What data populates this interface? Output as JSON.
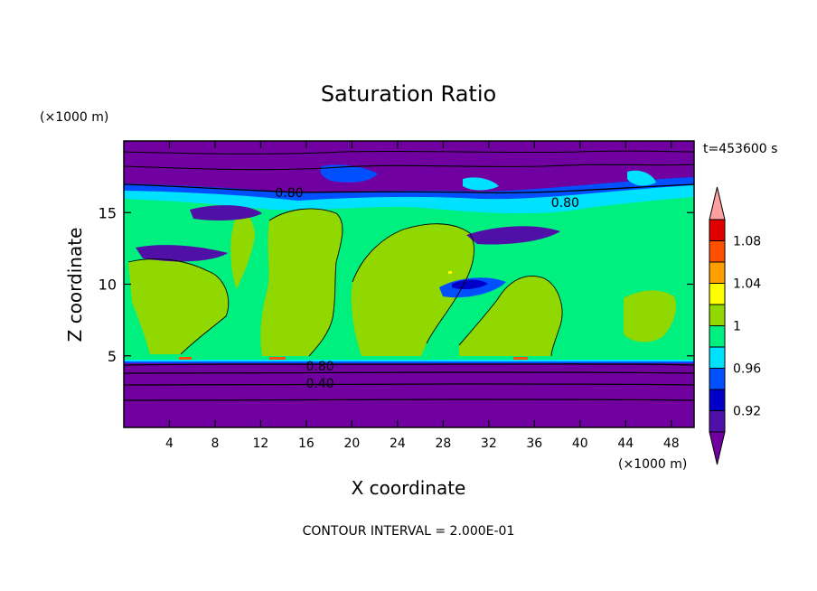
{
  "chart_data": {
    "type": "contour",
    "title": "Saturation Ratio",
    "time_label": "t=453600 s",
    "xlabel": "X coordinate",
    "ylabel": "Z coordinate",
    "x_unit": "(×1000 m)",
    "y_unit": "(×1000 m)",
    "xlim": [
      0,
      50
    ],
    "ylim": [
      0,
      20
    ],
    "xticks": [
      4,
      8,
      12,
      16,
      20,
      24,
      28,
      32,
      36,
      40,
      44,
      48
    ],
    "yticks": [
      5,
      10,
      15
    ],
    "footer": "CONTOUR INTERVAL = 2.000E-01",
    "contour_labels": [
      {
        "text": "0.80",
        "x": 14.5,
        "z": 16.4
      },
      {
        "text": "0.80",
        "x": 38.7,
        "z": 15.7
      },
      {
        "text": "0.80",
        "x": 17.2,
        "z": 4.3
      },
      {
        "text": "0.40",
        "x": 17.2,
        "z": 3.1
      }
    ],
    "colorbar": {
      "tick_labels": [
        "0.92",
        "0.96",
        "1",
        "1.04",
        "1.08"
      ],
      "bands": [
        {
          "range": "< 0.90",
          "color": "#7000a0"
        },
        {
          "range": "0.90-0.92",
          "color": "#5010a8"
        },
        {
          "range": "0.92-0.94",
          "color": "#0000c8"
        },
        {
          "range": "0.94-0.96",
          "color": "#0050ff"
        },
        {
          "range": "0.96-0.98",
          "color": "#00e0ff"
        },
        {
          "range": "0.98-1.00",
          "color": "#00f080"
        },
        {
          "range": "1.00-1.02",
          "color": "#90d800"
        },
        {
          "range": "1.02-1.04",
          "color": "#ffff00"
        },
        {
          "range": "1.04-1.06",
          "color": "#ffa000"
        },
        {
          "range": "1.06-1.08",
          "color": "#ff5000"
        },
        {
          "range": "1.08-1.10",
          "color": "#e00000"
        },
        {
          "range": "> 1.10",
          "color": "#ffa0a0"
        }
      ]
    }
  }
}
